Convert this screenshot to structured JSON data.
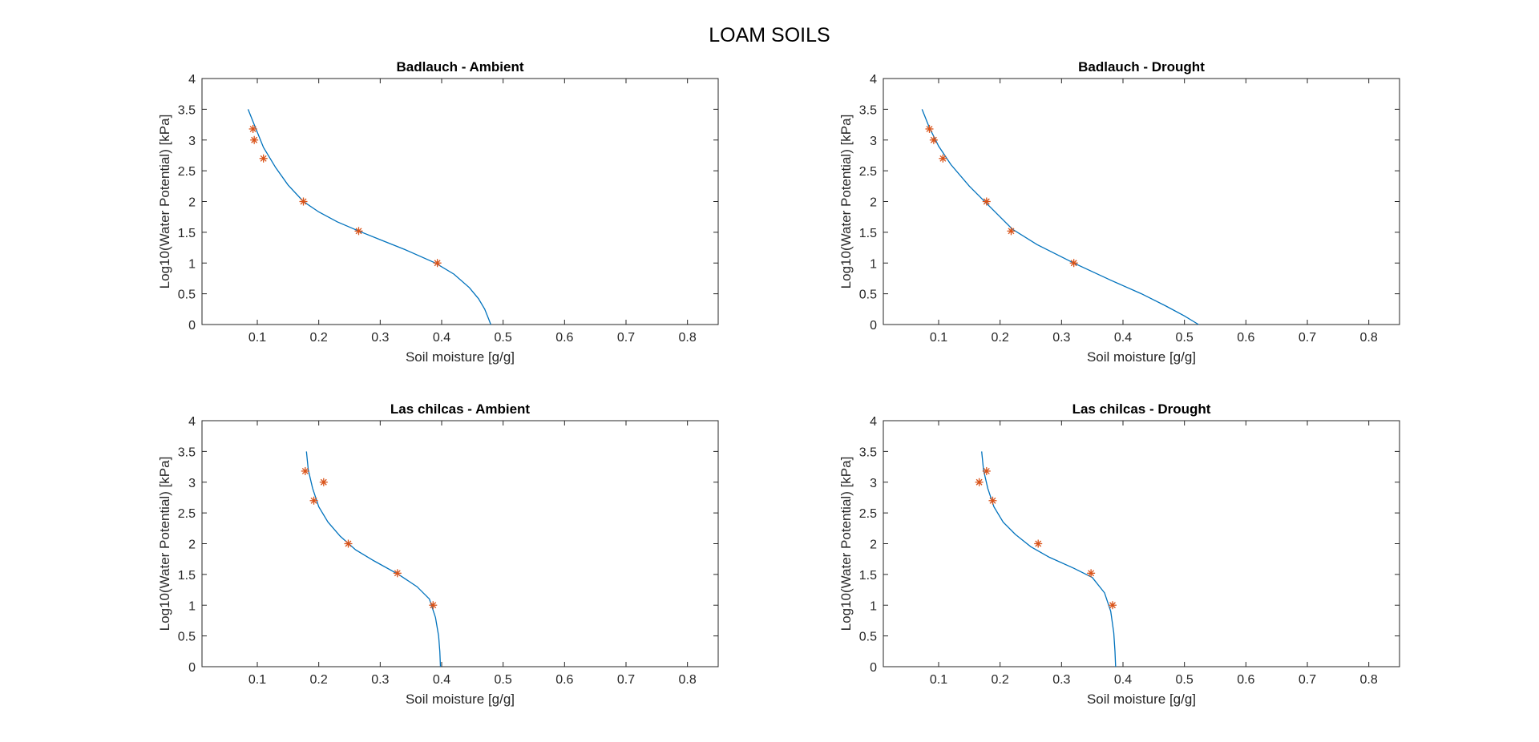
{
  "figure": {
    "title": "LOAM SOILS"
  },
  "colors": {
    "curve": "#0072BD",
    "marker": "#D95319",
    "axes": "#262626"
  },
  "chart_data": [
    {
      "type": "line",
      "title": "Badlauch - Ambient",
      "xlabel": "Soil moisture [g/g]",
      "ylabel": "Log10(Water Potential) [kPa]",
      "xlim": [
        0.01,
        0.85
      ],
      "ylim": [
        0,
        4
      ],
      "xticks": [
        0.1,
        0.2,
        0.3,
        0.4,
        0.5,
        0.6,
        0.7,
        0.8
      ],
      "xtick_labels": [
        "0.1",
        "0.2",
        "0.3",
        "0.4",
        "0.5",
        "0.6",
        "0.7",
        "0.8"
      ],
      "yticks": [
        0,
        0.5,
        1,
        1.5,
        2,
        2.5,
        3,
        3.5,
        4
      ],
      "ytick_labels": [
        "0",
        "0.5",
        "1",
        "1.5",
        "2",
        "2.5",
        "3",
        "3.5",
        "4"
      ],
      "grid": false,
      "series": [
        {
          "kind": "line",
          "x": [
            0.085,
            0.095,
            0.11,
            0.13,
            0.15,
            0.175,
            0.2,
            0.23,
            0.265,
            0.3,
            0.34,
            0.39,
            0.42,
            0.445,
            0.46,
            0.47,
            0.476,
            0.48
          ],
          "y": [
            3.5,
            3.25,
            2.88,
            2.55,
            2.27,
            2.0,
            1.83,
            1.67,
            1.52,
            1.38,
            1.22,
            1.0,
            0.82,
            0.6,
            0.42,
            0.25,
            0.1,
            0.0
          ]
        },
        {
          "kind": "scatter",
          "x": [
            0.093,
            0.095,
            0.11,
            0.175,
            0.265,
            0.393
          ],
          "y": [
            3.18,
            3.0,
            2.7,
            2.0,
            1.52,
            1.0
          ]
        }
      ]
    },
    {
      "type": "line",
      "title": "Badlauch - Drought",
      "xlabel": "Soil moisture [g/g]",
      "ylabel": "Log10(Water Potential) [kPa]",
      "xlim": [
        0.01,
        0.85
      ],
      "ylim": [
        0,
        4
      ],
      "xticks": [
        0.1,
        0.2,
        0.3,
        0.4,
        0.5,
        0.6,
        0.7,
        0.8
      ],
      "xtick_labels": [
        "0.1",
        "0.2",
        "0.3",
        "0.4",
        "0.5",
        "0.6",
        "0.7",
        "0.8"
      ],
      "yticks": [
        0,
        0.5,
        1,
        1.5,
        2,
        2.5,
        3,
        3.5,
        4
      ],
      "ytick_labels": [
        "0",
        "0.5",
        "1",
        "1.5",
        "2",
        "2.5",
        "3",
        "3.5",
        "4"
      ],
      "grid": false,
      "series": [
        {
          "kind": "line",
          "x": [
            0.073,
            0.085,
            0.1,
            0.12,
            0.15,
            0.18,
            0.22,
            0.26,
            0.32,
            0.38,
            0.43,
            0.47,
            0.5,
            0.523
          ],
          "y": [
            3.5,
            3.2,
            2.9,
            2.6,
            2.25,
            1.95,
            1.55,
            1.3,
            1.0,
            0.72,
            0.5,
            0.3,
            0.14,
            0.0
          ]
        },
        {
          "kind": "scatter",
          "x": [
            0.085,
            0.092,
            0.107,
            0.178,
            0.218,
            0.32
          ],
          "y": [
            3.18,
            3.0,
            2.7,
            2.0,
            1.52,
            1.0
          ]
        }
      ]
    },
    {
      "type": "line",
      "title": "Las chilcas - Ambient",
      "xlabel": "Soil moisture [g/g]",
      "ylabel": "Log10(Water Potential) [kPa]",
      "xlim": [
        0.01,
        0.85
      ],
      "ylim": [
        0,
        4
      ],
      "xticks": [
        0.1,
        0.2,
        0.3,
        0.4,
        0.5,
        0.6,
        0.7,
        0.8
      ],
      "xtick_labels": [
        "0.1",
        "0.2",
        "0.3",
        "0.4",
        "0.5",
        "0.6",
        "0.7",
        "0.8"
      ],
      "yticks": [
        0,
        0.5,
        1,
        1.5,
        2,
        2.5,
        3,
        3.5,
        4
      ],
      "ytick_labels": [
        "0",
        "0.5",
        "1",
        "1.5",
        "2",
        "2.5",
        "3",
        "3.5",
        "4"
      ],
      "grid": false,
      "series": [
        {
          "kind": "line",
          "x": [
            0.18,
            0.183,
            0.19,
            0.2,
            0.215,
            0.235,
            0.26,
            0.29,
            0.33,
            0.36,
            0.38,
            0.39,
            0.395,
            0.397,
            0.398
          ],
          "y": [
            3.5,
            3.2,
            2.9,
            2.6,
            2.35,
            2.12,
            1.9,
            1.72,
            1.5,
            1.3,
            1.1,
            0.8,
            0.5,
            0.25,
            0.0
          ]
        },
        {
          "kind": "scatter",
          "x": [
            0.178,
            0.208,
            0.192,
            0.248,
            0.328,
            0.386
          ],
          "y": [
            3.18,
            3.0,
            2.7,
            2.0,
            1.52,
            1.0
          ]
        }
      ]
    },
    {
      "type": "line",
      "title": "Las chilcas - Drought",
      "xlabel": "Soil moisture [g/g]",
      "ylabel": "Log10(Water Potential) [kPa]",
      "xlim": [
        0.01,
        0.85
      ],
      "ylim": [
        0,
        4
      ],
      "xticks": [
        0.1,
        0.2,
        0.3,
        0.4,
        0.5,
        0.6,
        0.7,
        0.8
      ],
      "xtick_labels": [
        "0.1",
        "0.2",
        "0.3",
        "0.4",
        "0.5",
        "0.6",
        "0.7",
        "0.8"
      ],
      "yticks": [
        0,
        0.5,
        1,
        1.5,
        2,
        2.5,
        3,
        3.5,
        4
      ],
      "ytick_labels": [
        "0",
        "0.5",
        "1",
        "1.5",
        "2",
        "2.5",
        "3",
        "3.5",
        "4"
      ],
      "grid": false,
      "series": [
        {
          "kind": "line",
          "x": [
            0.17,
            0.173,
            0.18,
            0.19,
            0.205,
            0.225,
            0.25,
            0.28,
            0.32,
            0.35,
            0.37,
            0.38,
            0.385,
            0.387,
            0.388
          ],
          "y": [
            3.5,
            3.2,
            2.9,
            2.6,
            2.35,
            2.15,
            1.95,
            1.78,
            1.6,
            1.45,
            1.2,
            0.9,
            0.55,
            0.25,
            0.0
          ]
        },
        {
          "kind": "scatter",
          "x": [
            0.178,
            0.166,
            0.188,
            0.262,
            0.348,
            0.383
          ],
          "y": [
            3.18,
            3.0,
            2.7,
            2.0,
            1.52,
            1.0
          ]
        }
      ]
    }
  ]
}
